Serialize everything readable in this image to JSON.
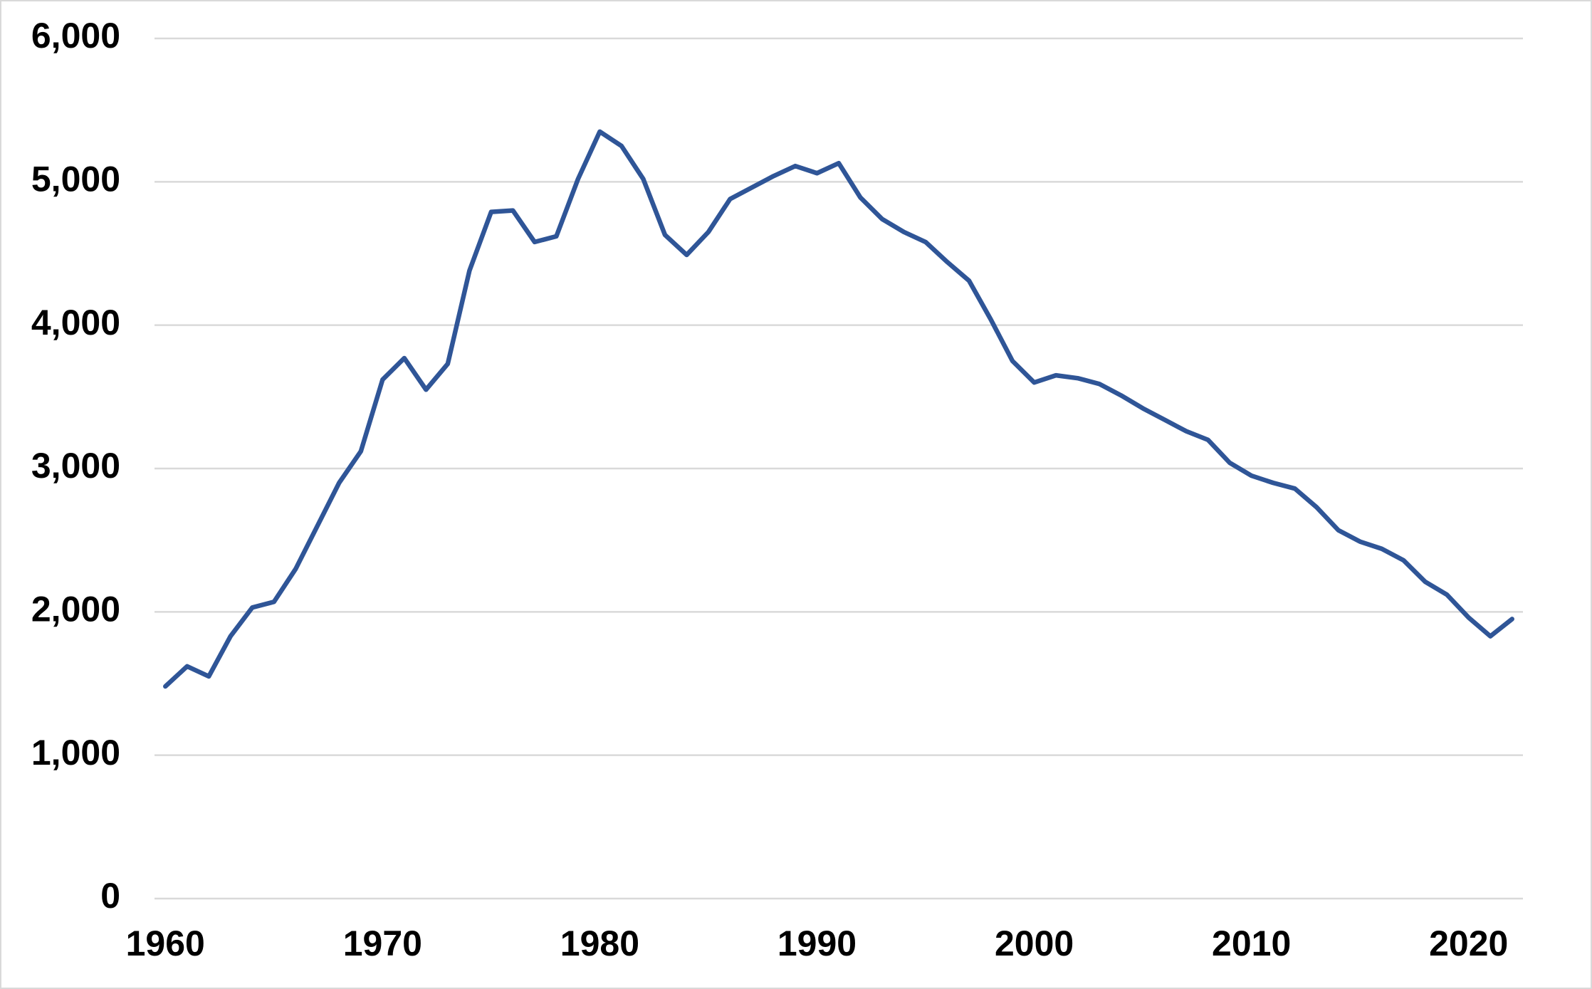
{
  "chart_data": {
    "type": "line",
    "x": [
      1960,
      1961,
      1962,
      1963,
      1964,
      1965,
      1966,
      1967,
      1968,
      1969,
      1970,
      1971,
      1972,
      1973,
      1974,
      1975,
      1976,
      1977,
      1978,
      1979,
      1980,
      1981,
      1982,
      1983,
      1984,
      1985,
      1986,
      1987,
      1988,
      1989,
      1990,
      1991,
      1992,
      1993,
      1994,
      1995,
      1996,
      1997,
      1998,
      1999,
      2000,
      2001,
      2002,
      2003,
      2004,
      2005,
      2006,
      2007,
      2008,
      2009,
      2010,
      2011,
      2012,
      2013,
      2014,
      2015,
      2016,
      2017,
      2018,
      2019,
      2020,
      2021,
      2022
    ],
    "series": [
      {
        "color": "#2f5597",
        "values": [
          1480,
          1620,
          1550,
          1830,
          2030,
          2070,
          2300,
          2600,
          2900,
          3120,
          3620,
          3770,
          3550,
          3730,
          4380,
          4790,
          4800,
          4580,
          4620,
          5020,
          5350,
          5250,
          5020,
          4630,
          4490,
          4650,
          4880,
          4960,
          5040,
          5110,
          5060,
          5130,
          4890,
          4740,
          4650,
          4580,
          4440,
          4310,
          4040,
          3750,
          3600,
          3650,
          3630,
          3590,
          3510,
          3420,
          3340,
          3260,
          3200,
          3040,
          2950,
          2900,
          2860,
          2730,
          2570,
          2490,
          2440,
          2360,
          2210,
          2120,
          1960,
          1830,
          1950
        ]
      }
    ],
    "xlim": [
      1959.5,
      2022.5
    ],
    "xticks": [
      1960,
      1970,
      1980,
      1990,
      2000,
      2010,
      2020
    ],
    "ylim": [
      0,
      6000
    ],
    "yticks": [
      0,
      {
        "value": 1000,
        "label": "1,000"
      },
      {
        "value": 2000,
        "label": "2,000"
      },
      {
        "value": 3000,
        "label": "3,000"
      },
      {
        "value": 4000,
        "label": "4,000"
      },
      {
        "value": 5000,
        "label": "5,000"
      },
      {
        "value": 6000,
        "label": "6,000"
      }
    ],
    "grid": true
  }
}
